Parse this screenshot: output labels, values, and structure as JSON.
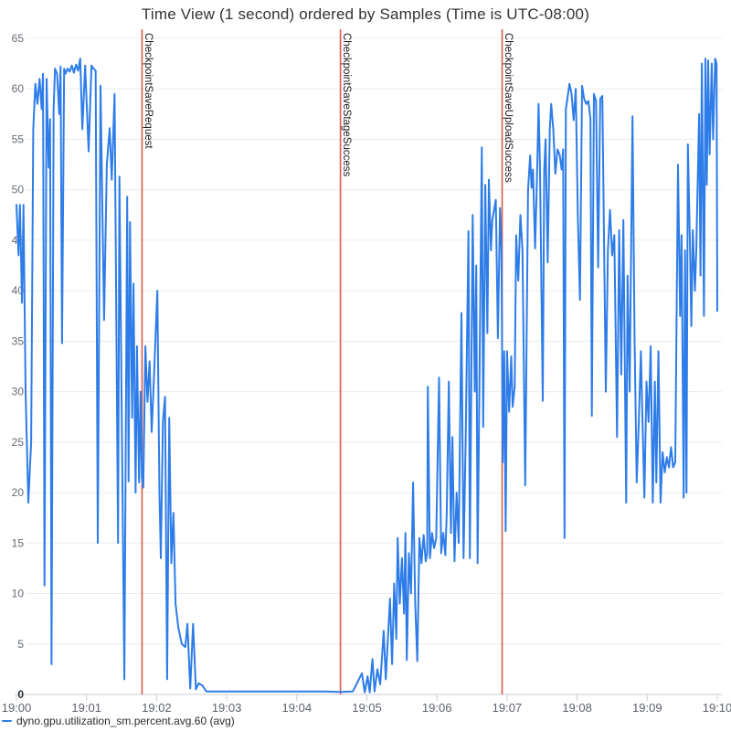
{
  "header": {
    "title": "Time View (1 second) ordered by Samples (Time is UTC-08:00)"
  },
  "legend": {
    "items": [
      {
        "label": "dyno.gpu.utilization_sm.percent.avg.60 (avg)",
        "color": "#2d7ce8"
      }
    ]
  },
  "chart_data": {
    "type": "line",
    "title": "Time View (1 second) ordered by Samples (Time is UTC-08:00)",
    "xlabel": "",
    "ylabel": "",
    "x_axis": {
      "ticks": [
        "19:00",
        "19:01",
        "19:02",
        "19:03",
        "19:04",
        "19:05",
        "19:06",
        "19:07",
        "19:08",
        "19:09",
        "19:10"
      ],
      "start_minute": 0,
      "end_minute": 10,
      "timezone": "UTC-08:00"
    },
    "y_axis": {
      "min": 0,
      "max": 65,
      "ticks": [
        0,
        5,
        10,
        15,
        20,
        25,
        30,
        35,
        40,
        45,
        50,
        55,
        60,
        65
      ]
    },
    "grid": true,
    "legend_position": "bottom-left",
    "colors": {
      "series": "#2d7ce8",
      "event_line": "#d95a46",
      "gridline": "#ececf0",
      "baseline": "#c9cdd4",
      "tick": "#c9cdd4"
    },
    "events": [
      {
        "label": "CheckpointSaveRequest",
        "minute": 1.792
      },
      {
        "label": "CheckpointSaveStageSuccess",
        "minute": 4.623
      },
      {
        "label": "CheckpointSaveUploadSuccess",
        "minute": 6.93
      }
    ],
    "series": [
      {
        "name": "dyno.gpu.utilization_sm.percent.avg.60 (avg)",
        "color": "#2d7ce8",
        "unit": "percent",
        "points": [
          [
            0,
            48.5
          ],
          [
            0.03,
            43.5
          ],
          [
            0.05,
            48.5
          ],
          [
            0.08,
            38.8
          ],
          [
            0.1,
            48.5
          ],
          [
            0.13,
            30
          ],
          [
            0.17,
            19
          ],
          [
            0.21,
            25
          ],
          [
            0.24,
            56
          ],
          [
            0.27,
            60.5
          ],
          [
            0.3,
            58.5
          ],
          [
            0.33,
            61
          ],
          [
            0.36,
            58
          ],
          [
            0.38,
            61.5
          ],
          [
            0.4,
            10.8
          ],
          [
            0.43,
            61
          ],
          [
            0.46,
            52.2
          ],
          [
            0.48,
            57
          ],
          [
            0.5,
            3
          ],
          [
            0.53,
            58
          ],
          [
            0.55,
            62
          ],
          [
            0.58,
            61.5
          ],
          [
            0.61,
            57.5
          ],
          [
            0.63,
            62.2
          ],
          [
            0.65,
            34.8
          ],
          [
            0.68,
            62
          ],
          [
            0.7,
            61.5
          ],
          [
            0.73,
            62
          ],
          [
            0.76,
            61.7
          ],
          [
            0.79,
            62.3
          ],
          [
            0.82,
            61.6
          ],
          [
            0.85,
            62.4
          ],
          [
            0.88,
            61.8
          ],
          [
            0.91,
            63
          ],
          [
            0.94,
            56
          ],
          [
            0.98,
            62.3
          ],
          [
            1.03,
            53.8
          ],
          [
            1.07,
            62.3
          ],
          [
            1.1,
            62
          ],
          [
            1.13,
            61.8
          ],
          [
            1.16,
            15
          ],
          [
            1.2,
            60.3
          ],
          [
            1.25,
            37.1
          ],
          [
            1.29,
            52.5
          ],
          [
            1.33,
            56.1
          ],
          [
            1.36,
            51
          ],
          [
            1.4,
            59.5
          ],
          [
            1.45,
            15
          ],
          [
            1.47,
            51.3
          ],
          [
            1.5,
            29
          ],
          [
            1.54,
            1.5
          ],
          [
            1.58,
            49.3
          ],
          [
            1.6,
            21.1
          ],
          [
            1.62,
            46.8
          ],
          [
            1.65,
            27.4
          ],
          [
            1.67,
            40.7
          ],
          [
            1.7,
            20
          ],
          [
            1.72,
            34.5
          ],
          [
            1.75,
            21
          ],
          [
            1.77,
            30
          ],
          [
            1.79,
            21.5
          ],
          [
            1.81,
            20.5
          ],
          [
            1.84,
            34.5
          ],
          [
            1.87,
            29
          ],
          [
            1.9,
            33
          ],
          [
            1.93,
            26
          ],
          [
            1.96,
            31
          ],
          [
            2.01,
            40
          ],
          [
            2.04,
            20
          ],
          [
            2.06,
            13.5
          ],
          [
            2.09,
            27
          ],
          [
            2.12,
            29.5
          ],
          [
            2.15,
            1.5
          ],
          [
            2.18,
            27.4
          ],
          [
            2.21,
            13
          ],
          [
            2.24,
            18
          ],
          [
            2.27,
            9
          ],
          [
            2.31,
            6.6
          ],
          [
            2.36,
            5
          ],
          [
            2.41,
            4.7
          ],
          [
            2.44,
            7
          ],
          [
            2.48,
            0.6
          ],
          [
            2.52,
            7
          ],
          [
            2.56,
            0.5
          ],
          [
            2.6,
            1.1
          ],
          [
            2.65,
            0.9
          ],
          [
            2.71,
            0.3
          ],
          [
            2.9,
            0.3
          ],
          [
            3.2,
            0.3
          ],
          [
            3.5,
            0.3
          ],
          [
            3.8,
            0.3
          ],
          [
            4.1,
            0.3
          ],
          [
            4.4,
            0.3
          ],
          [
            4.62,
            0.25
          ],
          [
            4.8,
            0.3
          ],
          [
            4.93,
            2.1
          ],
          [
            4.97,
            0.2
          ],
          [
            5.01,
            1.8
          ],
          [
            5.04,
            0.2
          ],
          [
            5.08,
            3.5
          ],
          [
            5.11,
            0.3
          ],
          [
            5.15,
            2.5
          ],
          [
            5.19,
            1
          ],
          [
            5.24,
            6.3
          ],
          [
            5.27,
            1.5
          ],
          [
            5.33,
            9.5
          ],
          [
            5.36,
            3
          ],
          [
            5.39,
            11
          ],
          [
            5.42,
            5.5
          ],
          [
            5.44,
            15.5
          ],
          [
            5.47,
            9
          ],
          [
            5.5,
            13.5
          ],
          [
            5.53,
            8
          ],
          [
            5.55,
            16
          ],
          [
            5.57,
            3.4
          ],
          [
            5.6,
            14
          ],
          [
            5.63,
            10
          ],
          [
            5.66,
            21
          ],
          [
            5.69,
            9
          ],
          [
            5.72,
            3.3
          ],
          [
            5.75,
            15.5
          ],
          [
            5.78,
            13
          ],
          [
            5.81,
            15.8
          ],
          [
            5.84,
            13.2
          ],
          [
            5.86,
            14
          ],
          [
            5.87,
            30.5
          ],
          [
            5.9,
            13.5
          ],
          [
            5.93,
            16
          ],
          [
            5.96,
            14.5
          ],
          [
            5.99,
            15.5
          ],
          [
            6.03,
            31.4
          ],
          [
            6.06,
            14
          ],
          [
            6.09,
            16
          ],
          [
            6.12,
            13.8
          ],
          [
            6.14,
            18
          ],
          [
            6.17,
            31
          ],
          [
            6.2,
            16
          ],
          [
            6.22,
            25.5
          ],
          [
            6.25,
            13.2
          ],
          [
            6.28,
            20
          ],
          [
            6.31,
            15
          ],
          [
            6.35,
            37.8
          ],
          [
            6.38,
            13.5
          ],
          [
            6.41,
            25
          ],
          [
            6.45,
            45.9
          ],
          [
            6.47,
            13.5
          ],
          [
            6.51,
            47.5
          ],
          [
            6.54,
            30
          ],
          [
            6.56,
            42.5
          ],
          [
            6.58,
            13
          ],
          [
            6.64,
            54.2
          ],
          [
            6.66,
            26.5
          ],
          [
            6.69,
            50.5
          ],
          [
            6.72,
            35.8
          ],
          [
            6.74,
            51
          ],
          [
            6.77,
            44
          ],
          [
            6.79,
            47
          ],
          [
            6.84,
            49
          ],
          [
            6.87,
            35.3
          ],
          [
            6.9,
            48.2
          ],
          [
            6.92,
            44
          ],
          [
            6.94,
            23
          ],
          [
            6.96,
            34
          ],
          [
            6.98,
            16.2
          ],
          [
            7,
            34
          ],
          [
            7.03,
            28
          ],
          [
            7.06,
            33.5
          ],
          [
            7.08,
            28.5
          ],
          [
            7.11,
            30.5
          ],
          [
            7.13,
            45.5
          ],
          [
            7.16,
            41
          ],
          [
            7.19,
            47.5
          ],
          [
            7.22,
            44
          ],
          [
            7.26,
            20.7
          ],
          [
            7.3,
            50
          ],
          [
            7.33,
            53.4
          ],
          [
            7.35,
            50.2
          ],
          [
            7.37,
            52
          ],
          [
            7.4,
            44.2
          ],
          [
            7.43,
            52
          ],
          [
            7.45,
            58.5
          ],
          [
            7.47,
            52.5
          ],
          [
            7.51,
            29.1
          ],
          [
            7.53,
            52
          ],
          [
            7.55,
            55
          ],
          [
            7.58,
            42.8
          ],
          [
            7.61,
            56
          ],
          [
            7.63,
            58.5
          ],
          [
            7.66,
            56
          ],
          [
            7.69,
            51.6
          ],
          [
            7.72,
            54
          ],
          [
            7.75,
            53.5
          ],
          [
            7.78,
            52
          ],
          [
            7.8,
            54
          ],
          [
            7.82,
            15.5
          ],
          [
            7.84,
            58
          ],
          [
            7.86,
            59
          ],
          [
            7.89,
            60.5
          ],
          [
            7.92,
            59.5
          ],
          [
            7.95,
            56.9
          ],
          [
            7.98,
            60
          ],
          [
            8.01,
            47.3
          ],
          [
            8.04,
            39.1
          ],
          [
            8.07,
            60.3
          ],
          [
            8.1,
            59
          ],
          [
            8.13,
            58.5
          ],
          [
            8.16,
            58.8
          ],
          [
            8.19,
            57
          ],
          [
            8.21,
            27.6
          ],
          [
            8.24,
            59.5
          ],
          [
            8.27,
            58.8
          ],
          [
            8.3,
            42.3
          ],
          [
            8.33,
            59
          ],
          [
            8.36,
            59.3
          ],
          [
            8.41,
            30
          ],
          [
            8.44,
            44
          ],
          [
            8.47,
            48
          ],
          [
            8.5,
            43.5
          ],
          [
            8.53,
            45.5
          ],
          [
            8.57,
            25.5
          ],
          [
            8.6,
            46
          ],
          [
            8.63,
            31.7
          ],
          [
            8.66,
            47
          ],
          [
            8.7,
            19
          ],
          [
            8.72,
            41.5
          ],
          [
            8.75,
            30
          ],
          [
            8.79,
            57.3
          ],
          [
            8.82,
            35
          ],
          [
            8.85,
            21
          ],
          [
            8.88,
            27
          ],
          [
            8.91,
            34
          ],
          [
            8.93,
            28
          ],
          [
            8.96,
            19.5
          ],
          [
            8.99,
            31
          ],
          [
            9.02,
            27
          ],
          [
            9.05,
            34.5
          ],
          [
            9.08,
            19
          ],
          [
            9.11,
            31
          ],
          [
            9.13,
            21
          ],
          [
            9.16,
            34
          ],
          [
            9.19,
            19
          ],
          [
            9.22,
            24
          ],
          [
            9.25,
            22
          ],
          [
            9.28,
            23.5
          ],
          [
            9.31,
            22.5
          ],
          [
            9.34,
            24.5
          ],
          [
            9.37,
            22.5
          ],
          [
            9.4,
            23
          ],
          [
            9.44,
            52.5
          ],
          [
            9.47,
            37.5
          ],
          [
            9.49,
            45.5
          ],
          [
            9.52,
            19.5
          ],
          [
            9.54,
            44
          ],
          [
            9.56,
            20
          ],
          [
            9.58,
            54.5
          ],
          [
            9.61,
            44.5
          ],
          [
            9.63,
            36.5
          ],
          [
            9.65,
            46
          ],
          [
            9.68,
            40
          ],
          [
            9.7,
            44
          ],
          [
            9.74,
            57.5
          ],
          [
            9.76,
            41.5
          ],
          [
            9.78,
            62.5
          ],
          [
            9.81,
            37.5
          ],
          [
            9.83,
            63
          ],
          [
            9.85,
            50.5
          ],
          [
            9.87,
            62.8
          ],
          [
            9.89,
            53.5
          ],
          [
            9.92,
            62.5
          ],
          [
            9.94,
            55
          ],
          [
            9.97,
            63
          ],
          [
            9.99,
            62.5
          ],
          [
            10,
            38
          ]
        ]
      }
    ]
  }
}
